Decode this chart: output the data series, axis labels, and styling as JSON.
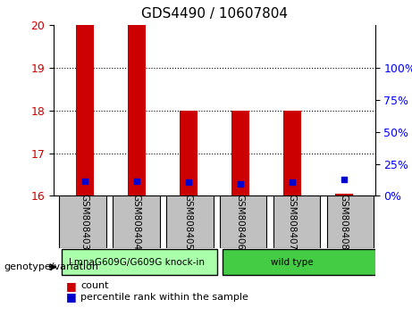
{
  "title": "GDS4490 / 10607804",
  "samples": [
    "GSM808403",
    "GSM808404",
    "GSM808405",
    "GSM808406",
    "GSM808407",
    "GSM808408"
  ],
  "bar_base": 16.0,
  "red_bar_tops": [
    20.0,
    20.0,
    18.0,
    18.0,
    18.0,
    16.05
  ],
  "blue_dot_y": [
    16.35,
    16.35,
    16.32,
    16.28,
    16.32,
    16.38
  ],
  "ylim": [
    16.0,
    20.0
  ],
  "yticks_left": [
    16,
    17,
    18,
    19,
    20
  ],
  "yticks_right": [
    0,
    25,
    50,
    75,
    100
  ],
  "yticks_right_y": [
    16.0,
    16.75,
    17.5,
    18.25,
    19.0
  ],
  "groups": [
    {
      "label": "LmnaG609G/G609G knock-in",
      "color": "#90EE90",
      "samples": [
        0,
        1,
        2
      ]
    },
    {
      "label": "wild type",
      "color": "#00CC00",
      "samples": [
        3,
        4,
        5
      ]
    }
  ],
  "genotype_label": "genotype/variation",
  "legend_count_label": "count",
  "legend_pct_label": "percentile rank within the sample",
  "red_color": "#CC0000",
  "blue_color": "#0000CC",
  "bar_width": 0.35,
  "bg_plot": "#FFFFFF",
  "grid_color": "#000000",
  "label_area_color": "#C0C0C0",
  "group1_color": "#AAFFAA",
  "group2_color": "#44CC44"
}
